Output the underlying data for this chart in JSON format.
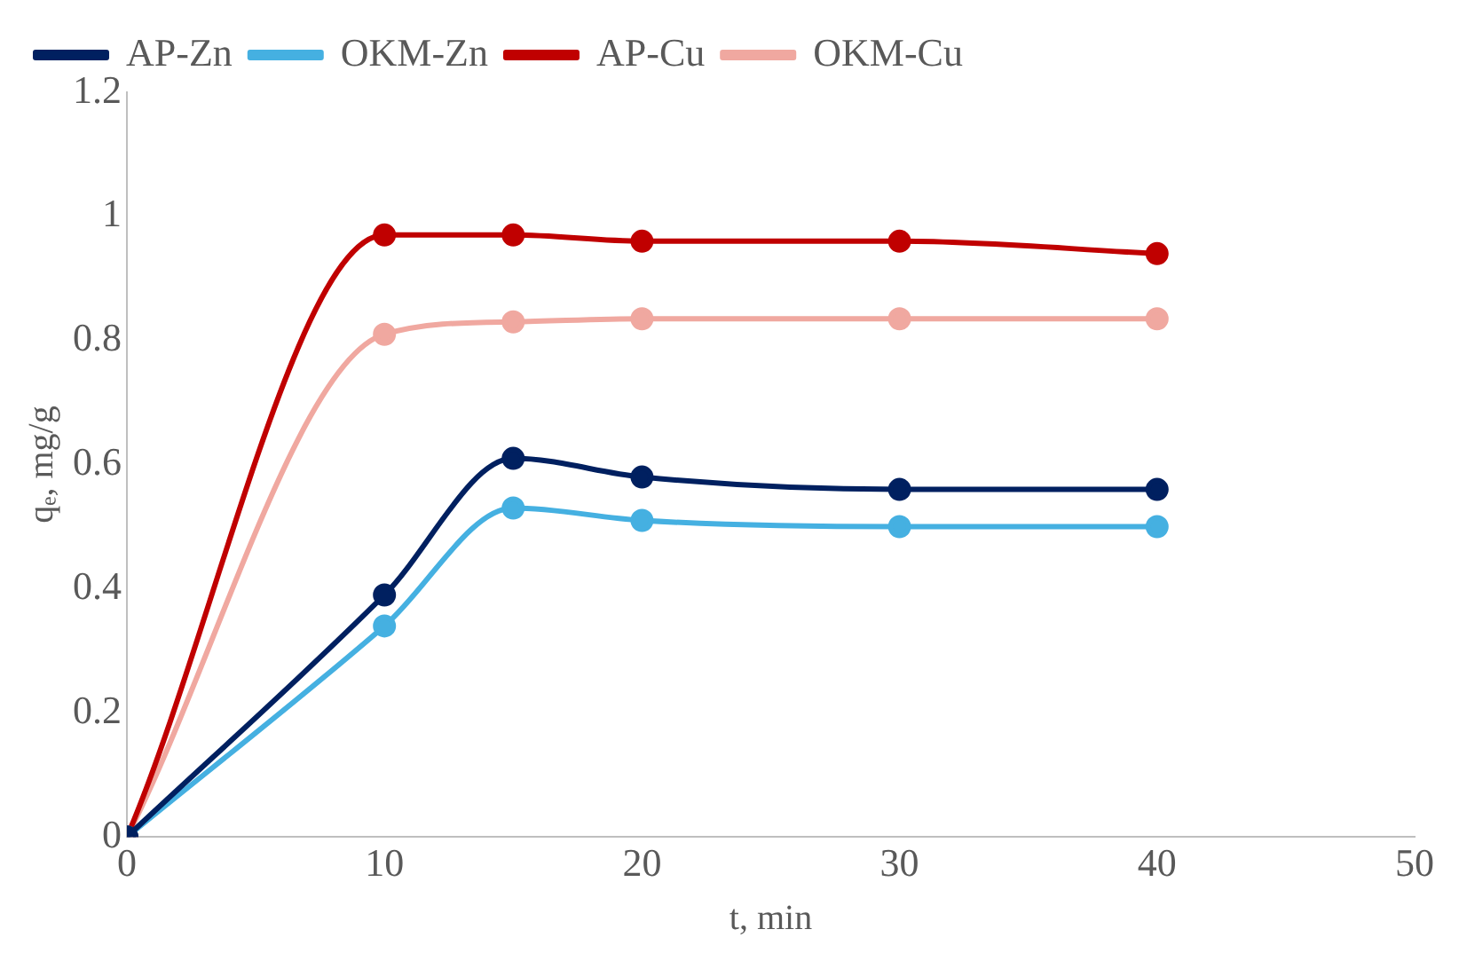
{
  "chart_data": {
    "type": "line",
    "xlabel": "t, min",
    "ylabel": "qₑ, mg/g",
    "x": [
      0,
      10,
      15,
      20,
      30,
      40
    ],
    "series": [
      {
        "name": "AP-Zn",
        "color": "#002060",
        "values": [
          0,
          0.39,
          0.61,
          0.58,
          0.56,
          0.56
        ]
      },
      {
        "name": "OKM-Zn",
        "color": "#45b0e1",
        "values": [
          0,
          0.34,
          0.53,
          0.51,
          0.5,
          0.5
        ]
      },
      {
        "name": "AP-Cu",
        "color": "#c00000",
        "values": [
          0,
          0.97,
          0.97,
          0.96,
          0.96,
          0.94
        ]
      },
      {
        "name": "OKM-Cu",
        "color": "#f0a8a0",
        "values": [
          0,
          0.81,
          0.83,
          0.835,
          0.835,
          0.835
        ]
      }
    ],
    "xlim": [
      0,
      50
    ],
    "xticks": [
      0,
      10,
      20,
      30,
      40,
      50
    ],
    "ylim": [
      0,
      1.2
    ],
    "yticks": [
      0,
      0.2,
      0.4,
      0.6,
      0.8,
      1,
      1.2
    ],
    "grid": false,
    "legend": "top",
    "marker": "circle",
    "line_style": "solid"
  }
}
